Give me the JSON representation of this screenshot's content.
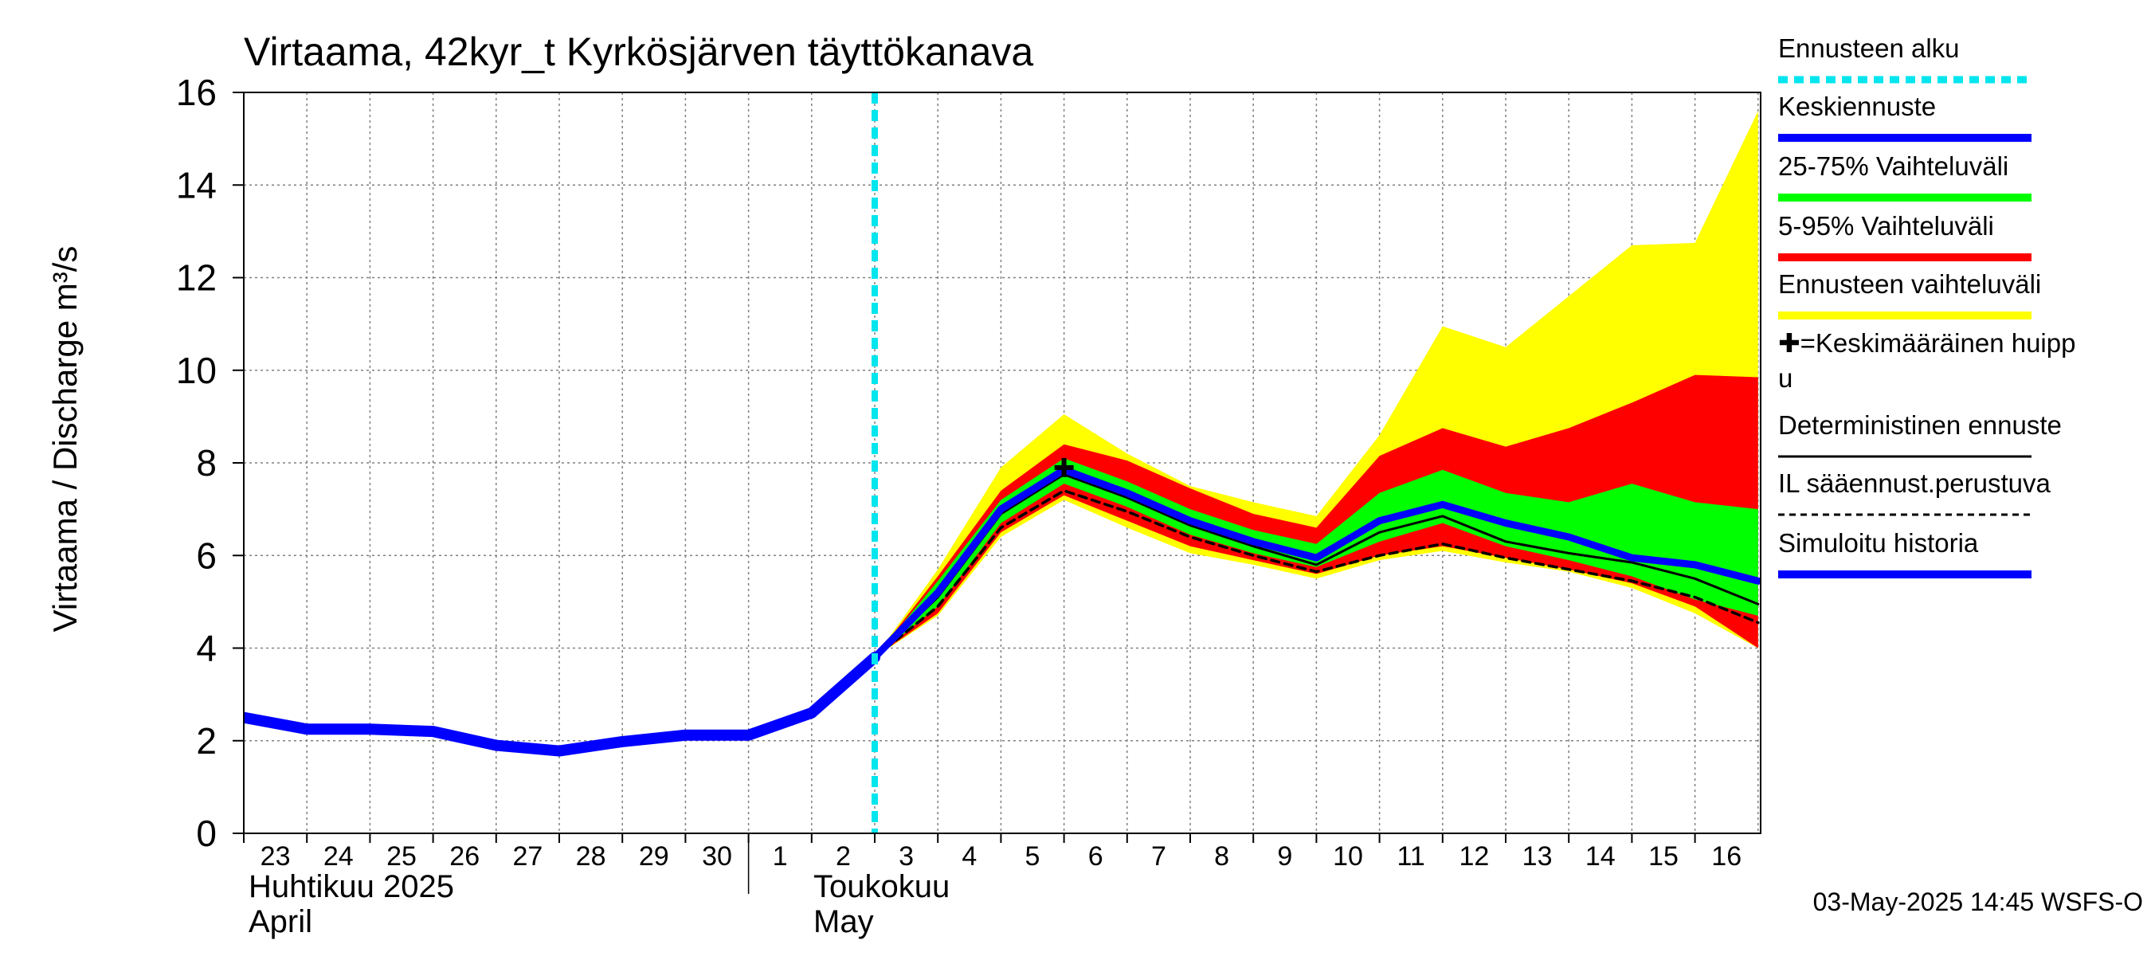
{
  "chart_data": {
    "type": "area",
    "title": "Virtaama, 42kyr_t Kyrkösjärven täyttökanava",
    "ylabel": "Virtaama / Discharge    m³/s",
    "ylim": [
      0,
      16
    ],
    "yticks": [
      0,
      2,
      4,
      6,
      8,
      10,
      12,
      14,
      16
    ],
    "x_start": "2025-04-23",
    "x_end": "2025-05-17",
    "x_tick_labels": [
      "23",
      "24",
      "25",
      "26",
      "27",
      "28",
      "29",
      "30",
      "1",
      "2",
      "3",
      "4",
      "5",
      "6",
      "7",
      "8",
      "9",
      "10",
      "11",
      "12",
      "13",
      "14",
      "15",
      "16"
    ],
    "months": [
      {
        "label_fi": "Huhtikuu  2025",
        "label_en": "April"
      },
      {
        "label_fi": "Toukokuu",
        "label_en": "May"
      }
    ],
    "forecast_start": "2025-05-03",
    "peak": {
      "date": "2025-05-06",
      "value": 7.9
    },
    "series": [
      {
        "name": "Simuloitu historia",
        "color": "#0000ff",
        "x": [
          "2025-04-23",
          "2025-04-24",
          "2025-04-25",
          "2025-04-26",
          "2025-04-27",
          "2025-04-28",
          "2025-04-29",
          "2025-04-30",
          "2025-05-01",
          "2025-05-02",
          "2025-05-03"
        ],
        "values": [
          2.5,
          2.25,
          2.25,
          2.2,
          1.9,
          1.78,
          1.98,
          2.12,
          2.12,
          2.6,
          3.8
        ]
      },
      {
        "name": "Ennusteen vaihteluväli",
        "color": "#ffff00",
        "x": [
          "2025-05-03",
          "2025-05-04",
          "2025-05-05",
          "2025-05-06",
          "2025-05-07",
          "2025-05-08",
          "2025-05-09",
          "2025-05-10",
          "2025-05-11",
          "2025-05-12",
          "2025-05-13",
          "2025-05-14",
          "2025-05-15",
          "2025-05-16",
          "2025-05-17"
        ],
        "upper": [
          3.8,
          5.7,
          7.9,
          9.05,
          8.2,
          7.5,
          7.15,
          6.85,
          8.6,
          10.95,
          10.5,
          11.6,
          12.7,
          12.75,
          15.6
        ],
        "lower": [
          3.8,
          4.7,
          6.4,
          7.2,
          6.6,
          6.05,
          5.8,
          5.5,
          5.9,
          6.1,
          5.85,
          5.65,
          5.3,
          4.75,
          4.0
        ]
      },
      {
        "name": "5-95% Vaihteluväli",
        "color": "#ff0000",
        "x": [
          "2025-05-03",
          "2025-05-04",
          "2025-05-05",
          "2025-05-06",
          "2025-05-07",
          "2025-05-08",
          "2025-05-09",
          "2025-05-10",
          "2025-05-11",
          "2025-05-12",
          "2025-05-13",
          "2025-05-14",
          "2025-05-15",
          "2025-05-16",
          "2025-05-17"
        ],
        "upper": [
          3.8,
          5.55,
          7.4,
          8.4,
          8.05,
          7.45,
          6.9,
          6.6,
          8.15,
          8.75,
          8.35,
          8.75,
          9.3,
          9.9,
          9.85
        ],
        "lower": [
          3.8,
          4.75,
          6.5,
          7.3,
          6.75,
          6.2,
          5.9,
          5.6,
          6.0,
          6.2,
          5.95,
          5.7,
          5.4,
          4.9,
          4.0
        ]
      },
      {
        "name": "25-75% Vaihteluväli",
        "color": "#00ff00",
        "x": [
          "2025-05-03",
          "2025-05-04",
          "2025-05-05",
          "2025-05-06",
          "2025-05-07",
          "2025-05-08",
          "2025-05-09",
          "2025-05-10",
          "2025-05-11",
          "2025-05-12",
          "2025-05-13",
          "2025-05-14",
          "2025-05-15",
          "2025-05-16",
          "2025-05-17"
        ],
        "upper": [
          3.8,
          5.45,
          7.2,
          8.1,
          7.6,
          7.0,
          6.55,
          6.25,
          7.35,
          7.85,
          7.35,
          7.15,
          7.55,
          7.15,
          7.0
        ],
        "lower": [
          3.8,
          4.9,
          6.7,
          7.55,
          7.05,
          6.45,
          6.05,
          5.75,
          6.3,
          6.7,
          6.2,
          5.9,
          5.55,
          5.05,
          4.7
        ]
      },
      {
        "name": "Keskiennuste",
        "color": "#0000ff",
        "x": [
          "2025-05-03",
          "2025-05-04",
          "2025-05-05",
          "2025-05-06",
          "2025-05-07",
          "2025-05-08",
          "2025-05-09",
          "2025-05-10",
          "2025-05-11",
          "2025-05-12",
          "2025-05-13",
          "2025-05-14",
          "2025-05-15",
          "2025-05-16",
          "2025-05-17"
        ],
        "values": [
          3.8,
          5.2,
          7.0,
          7.85,
          7.35,
          6.75,
          6.3,
          5.95,
          6.75,
          7.1,
          6.7,
          6.4,
          5.95,
          5.8,
          5.45
        ]
      },
      {
        "name": "Deterministinen ennuste",
        "color": "#000000",
        "x": [
          "2025-05-03",
          "2025-05-04",
          "2025-05-05",
          "2025-05-06",
          "2025-05-07",
          "2025-05-08",
          "2025-05-09",
          "2025-05-10",
          "2025-05-11",
          "2025-05-12",
          "2025-05-13",
          "2025-05-14",
          "2025-05-15",
          "2025-05-16",
          "2025-05-17"
        ],
        "values": [
          3.8,
          5.1,
          6.9,
          7.75,
          7.25,
          6.65,
          6.2,
          5.8,
          6.5,
          6.85,
          6.3,
          6.05,
          5.85,
          5.5,
          4.95
        ]
      },
      {
        "name": "IL sääennust.perustuva",
        "color": "#000000",
        "dashed": true,
        "x": [
          "2025-05-03",
          "2025-05-04",
          "2025-05-05",
          "2025-05-06",
          "2025-05-07",
          "2025-05-08",
          "2025-05-09",
          "2025-05-10",
          "2025-05-11",
          "2025-05-12",
          "2025-05-13",
          "2025-05-14",
          "2025-05-15",
          "2025-05-16",
          "2025-05-17"
        ],
        "values": [
          3.8,
          4.9,
          6.6,
          7.4,
          6.95,
          6.4,
          6.0,
          5.65,
          6.0,
          6.25,
          5.95,
          5.7,
          5.45,
          5.1,
          4.55
        ]
      }
    ],
    "legend": [
      {
        "label": "Ennusteen alku",
        "color": "#00e5ee",
        "style": "dotted"
      },
      {
        "label": "Keskiennuste",
        "color": "#0000ff",
        "style": "solid"
      },
      {
        "label": "25-75% Vaihteluväli",
        "color": "#00ff00",
        "style": "solid"
      },
      {
        "label": "5-95% Vaihteluväli",
        "color": "#ff0000",
        "style": "solid"
      },
      {
        "label": "Ennusteen vaihteluväli",
        "color": "#ffff00",
        "style": "solid"
      },
      {
        "label": "✚=Keskimääräinen huipp\nu",
        "color": "#000000",
        "style": "none"
      },
      {
        "label": "Deterministinen ennuste",
        "color": "#000000",
        "style": "thin"
      },
      {
        "label": "IL sääennust.perustuva",
        "color": "#000000",
        "style": "dashed"
      },
      {
        "label": "Simuloitu historia",
        "color": "#0000ff",
        "style": "solid"
      }
    ],
    "grid": true,
    "legend_position": "right"
  },
  "footer": {
    "timestamp": "03-May-2025 14:45 WSFS-O"
  }
}
